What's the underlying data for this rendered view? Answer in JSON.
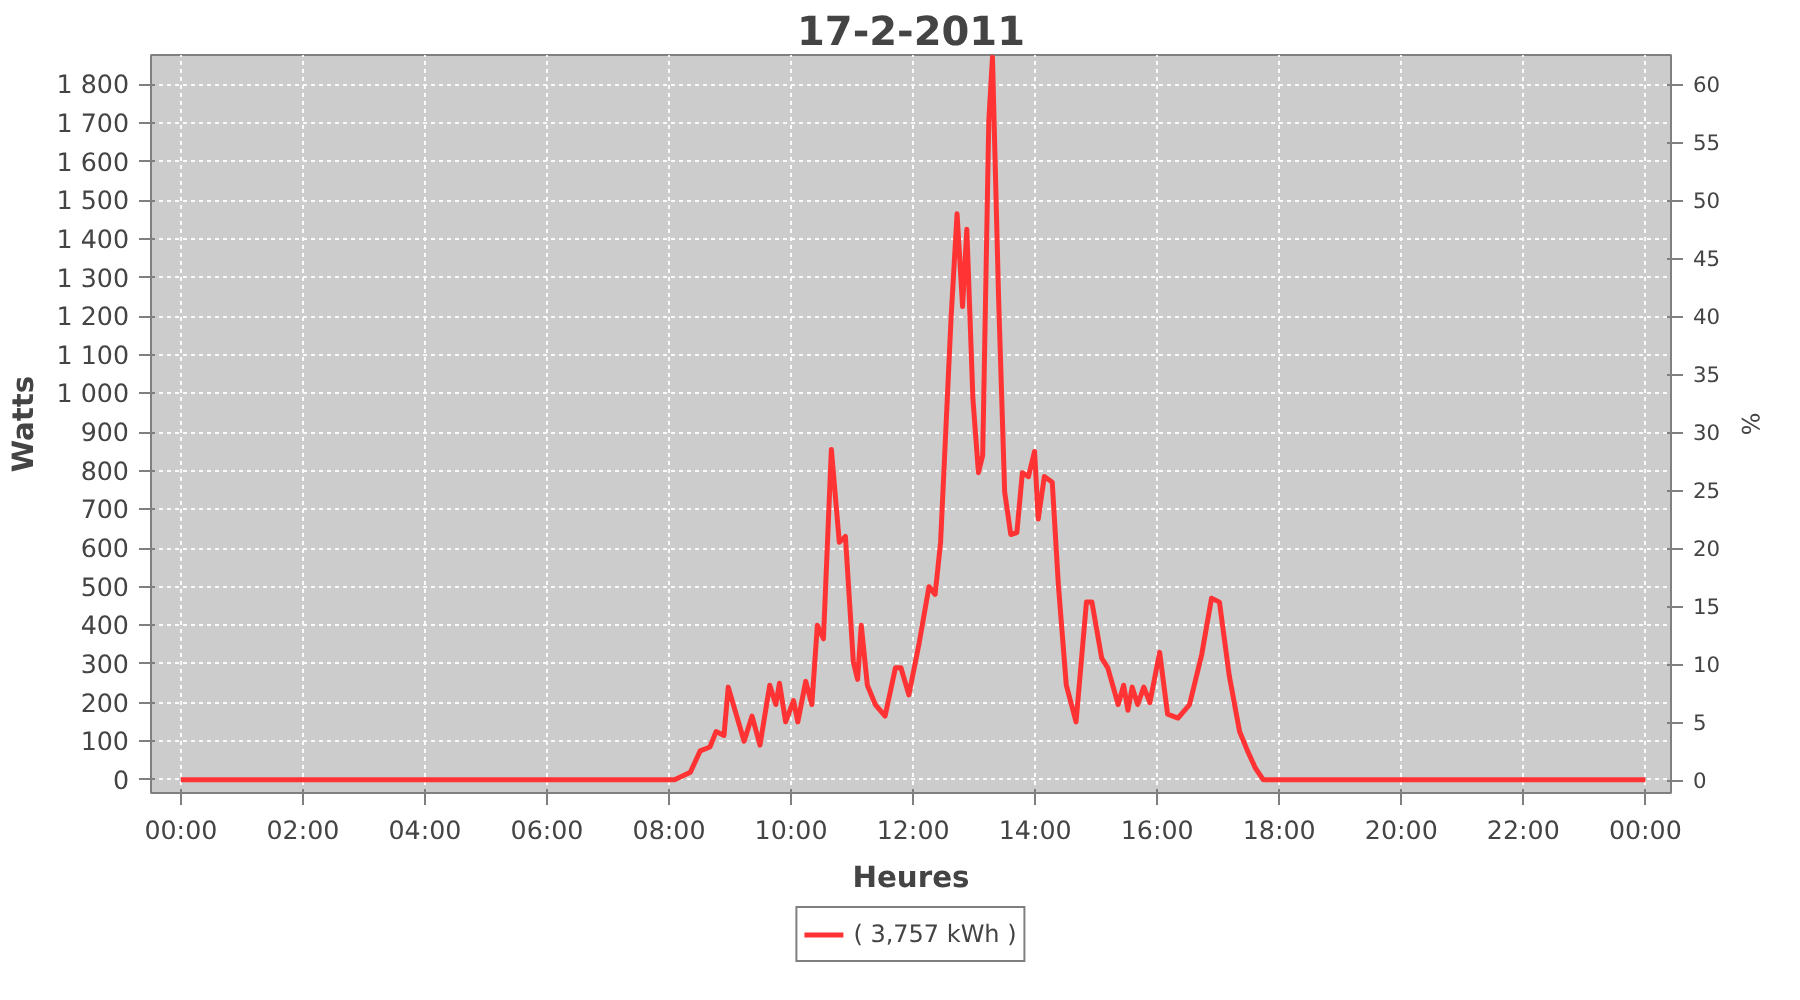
{
  "chart_data": {
    "type": "line",
    "title": "17-2-2011",
    "xlabel": "Heures",
    "ylabel": "Watts",
    "y2label": "%",
    "series": [
      {
        "name": "( 3,757 kWh )",
        "color": "#ff3333",
        "x": [
          0,
          8.09,
          8.35,
          8.51,
          8.67,
          8.77,
          8.9,
          8.97,
          9.1,
          9.23,
          9.36,
          9.49,
          9.65,
          9.75,
          9.81,
          9.91,
          10.04,
          10.11,
          10.24,
          10.34,
          10.43,
          10.53,
          10.66,
          10.79,
          10.89,
          11.02,
          11.09,
          11.15,
          11.25,
          11.38,
          11.54,
          11.71,
          11.8,
          11.93,
          12.1,
          12.26,
          12.36,
          12.45,
          12.62,
          12.72,
          12.81,
          12.88,
          12.98,
          13.07,
          13.14,
          13.24,
          13.3,
          13.4,
          13.5,
          13.6,
          13.7,
          13.79,
          13.89,
          13.99,
          14.05,
          14.15,
          14.28,
          14.38,
          14.51,
          14.67,
          14.84,
          14.93,
          15.09,
          15.19,
          15.36,
          15.45,
          15.52,
          15.59,
          15.68,
          15.78,
          15.88,
          16.04,
          16.17,
          16.34,
          16.53,
          16.73,
          16.89,
          17.02,
          17.18,
          17.35,
          17.48,
          17.61,
          17.74,
          24
        ],
        "values": [
          0,
          0,
          20,
          75,
          85,
          125,
          115,
          240,
          170,
          100,
          165,
          90,
          245,
          195,
          250,
          150,
          205,
          150,
          255,
          195,
          400,
          365,
          855,
          615,
          630,
          305,
          260,
          400,
          245,
          195,
          165,
          290,
          290,
          220,
          355,
          500,
          480,
          615,
          1190,
          1465,
          1225,
          1425,
          985,
          795,
          840,
          1705,
          1870,
          1250,
          745,
          635,
          640,
          795,
          785,
          850,
          675,
          785,
          770,
          505,
          245,
          150,
          460,
          460,
          315,
          290,
          195,
          245,
          180,
          240,
          195,
          240,
          200,
          330,
          170,
          160,
          195,
          325,
          470,
          460,
          270,
          125,
          75,
          30,
          0,
          0
        ]
      }
    ],
    "xlim": [
      -0.49,
      24.42
    ],
    "xticks": [
      {
        "value": 0,
        "label": "00:00"
      },
      {
        "value": 2,
        "label": "02:00"
      },
      {
        "value": 4,
        "label": "04:00"
      },
      {
        "value": 6,
        "label": "06:00"
      },
      {
        "value": 8,
        "label": "08:00"
      },
      {
        "value": 10,
        "label": "10:00"
      },
      {
        "value": 12,
        "label": "12:00"
      },
      {
        "value": 14,
        "label": "14:00"
      },
      {
        "value": 16,
        "label": "16:00"
      },
      {
        "value": 18,
        "label": "18:00"
      },
      {
        "value": 20,
        "label": "20:00"
      },
      {
        "value": 22,
        "label": "22:00"
      },
      {
        "value": 24,
        "label": "00:00"
      }
    ],
    "ylim": [
      -34,
      1876
    ],
    "yticks": [
      0,
      100,
      200,
      300,
      400,
      500,
      600,
      700,
      800,
      900,
      {
        "value": 1000,
        "label": "1 000"
      },
      {
        "value": 1100,
        "label": "1 100"
      },
      {
        "value": 1200,
        "label": "1 200"
      },
      {
        "value": 1300,
        "label": "1 300"
      },
      {
        "value": 1400,
        "label": "1 400"
      },
      {
        "value": 1500,
        "label": "1 500"
      },
      {
        "value": 1600,
        "label": "1 600"
      },
      {
        "value": 1700,
        "label": "1 700"
      },
      {
        "value": 1800,
        "label": "1 800"
      }
    ],
    "y2lim": [
      -1.1,
      62.5
    ],
    "y2ticks": [
      0,
      5,
      10,
      15,
      20,
      25,
      30,
      35,
      40,
      45,
      50,
      55,
      60
    ],
    "grid": true,
    "legend": "bottom",
    "marker": "none",
    "line_style": "solid"
  }
}
